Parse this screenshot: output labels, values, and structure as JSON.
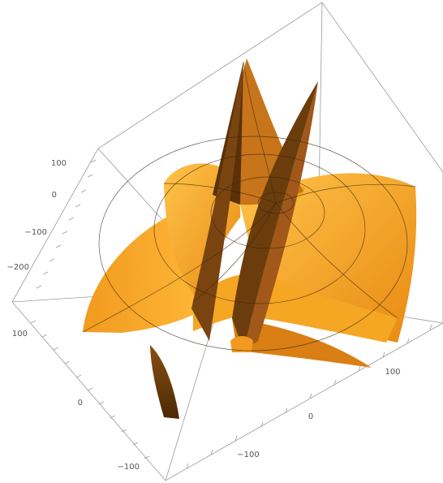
{
  "chart_data": {
    "type": "surface3d",
    "title": "",
    "axes": {
      "a": {
        "ticks": [
          100,
          0,
          -100,
          -200
        ],
        "tick_labels": [
          "100",
          "0",
          "−100",
          "−200"
        ]
      },
      "b": {
        "ticks": [
          -100,
          0,
          100
        ],
        "tick_labels": [
          "−100",
          "0",
          "100"
        ]
      },
      "c": {
        "ticks": [
          100,
          0,
          -100
        ],
        "tick_labels": [
          "100",
          "0",
          "−100"
        ]
      }
    },
    "surface_color": "#f5a623",
    "surface_highlight": "#ffd84a",
    "surface_shadow": "#6b3d0c",
    "mesh_color": "#3a2410",
    "box_color": "#9a9a9a",
    "grid": false,
    "legend": "none"
  }
}
